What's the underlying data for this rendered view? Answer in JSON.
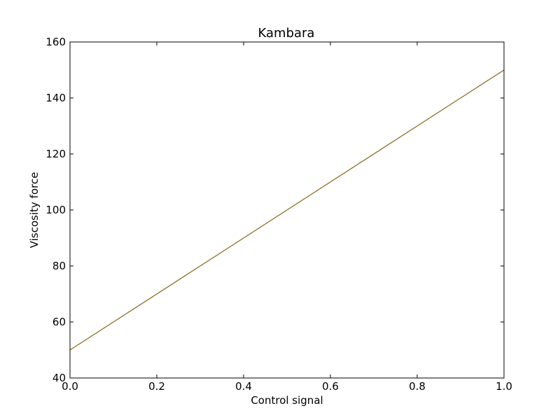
{
  "chart_data": {
    "type": "line",
    "title": "Kambara",
    "xlabel": "Control signal",
    "ylabel": "Viscosity force",
    "xlim": [
      0,
      1
    ],
    "ylim": [
      40,
      160
    ],
    "x_ticks": [
      "0.0",
      "0.2",
      "0.4",
      "0.6",
      "0.8",
      "1.0"
    ],
    "y_ticks": [
      "40",
      "60",
      "80",
      "100",
      "120",
      "140",
      "160"
    ],
    "grid": false,
    "series": [
      {
        "x": [
          0,
          1
        ],
        "values": [
          50,
          150
        ],
        "color": "#bfbf00"
      },
      {
        "x": [
          0,
          1
        ],
        "values": [
          50,
          150
        ],
        "color": "#8c6d3f"
      }
    ]
  }
}
